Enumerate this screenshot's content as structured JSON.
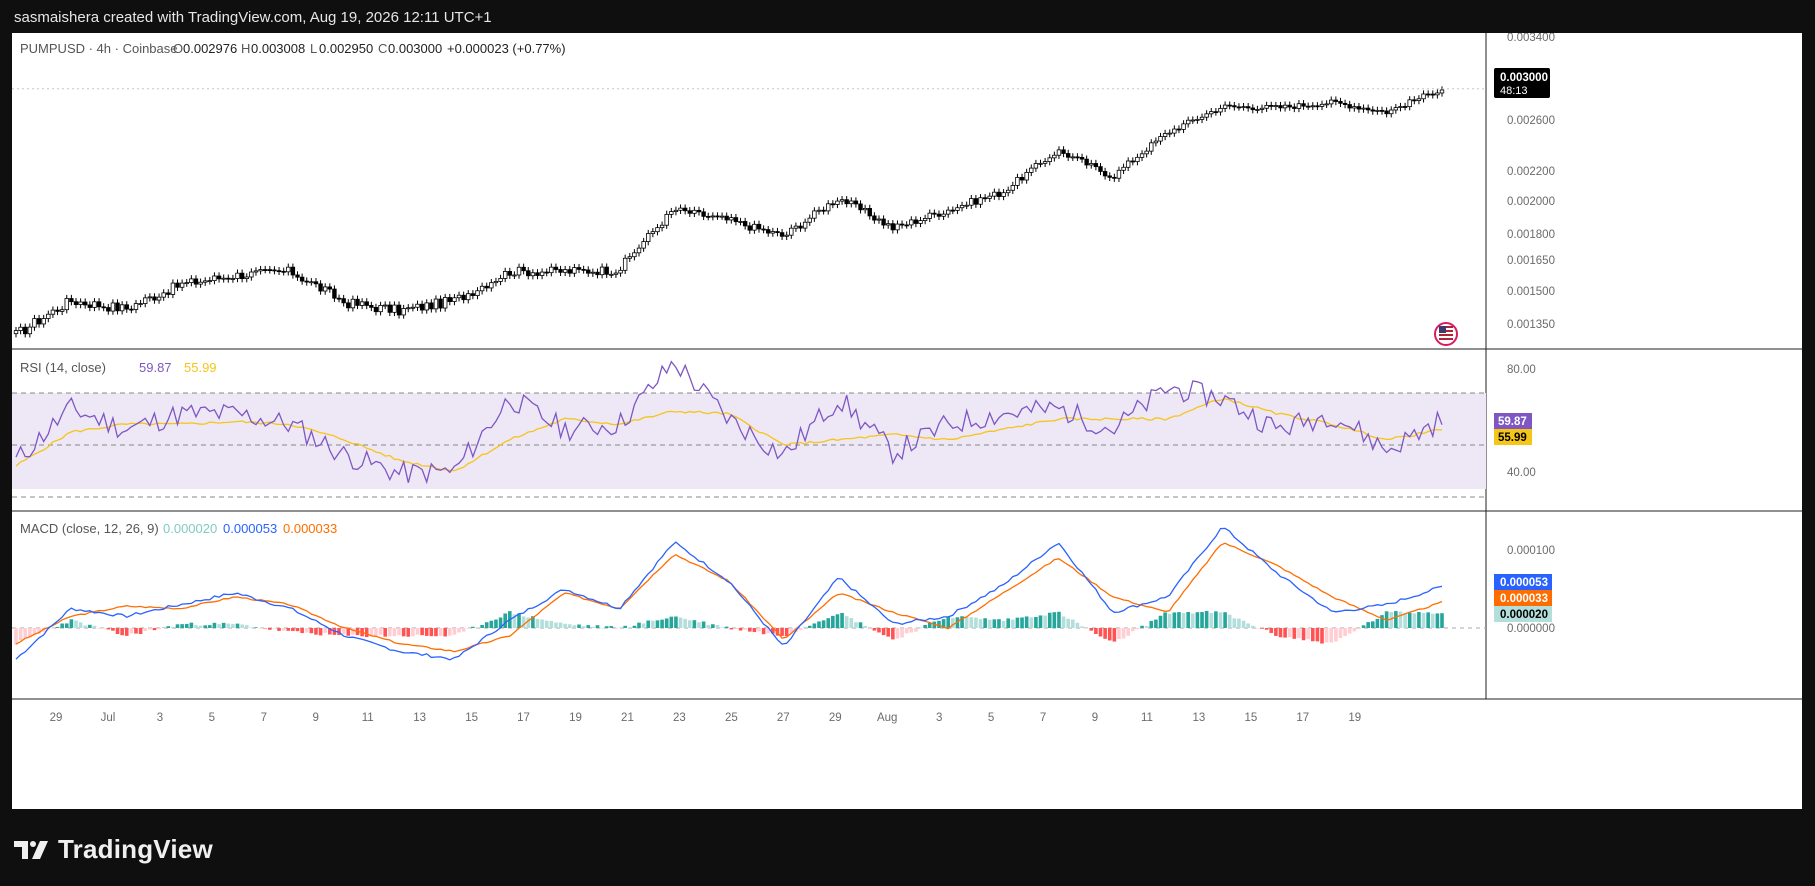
{
  "header": {
    "credit": "sasmaishera created with TradingView.com, Aug 19, 2026 12:11 UTC+1"
  },
  "footer": {
    "brand": "TradingView"
  },
  "colors": {
    "candle_up_body": "#ffffff",
    "candle_down_body": "#000000",
    "rsi_line": "#7e57c2",
    "rsi_ma": "#f5c518",
    "rsi_band": "#ede7f6",
    "macd_line": "#2962ff",
    "signal_line": "#ff6d00",
    "hist_pos_strong": "#26a69a",
    "hist_pos_weak": "#b2dfdb",
    "hist_neg_strong": "#ff5252",
    "hist_neg_weak": "#ffcdd2"
  },
  "price_panel": {
    "symbol": "PUMPUSD · 4h · Coinbase",
    "o_label": "O",
    "o_value": "0.002976",
    "h_label": "H",
    "h_value": "0.003008",
    "l_label": "L",
    "l_value": "0.002950",
    "c_label": "C",
    "c_value": "0.003000",
    "change": "+0.000023 (+0.77%)",
    "last_price": "0.003000",
    "countdown": "48:13",
    "y_ticks": [
      "0.003400",
      "0.002600",
      "0.002200",
      "0.002000",
      "0.001800",
      "0.001650",
      "0.001500",
      "0.001350"
    ],
    "flag_icon": "us-flag-icon"
  },
  "rsi_panel": {
    "title": "RSI (14, close)",
    "rsi_value": "59.87",
    "ma_value": "55.99",
    "y_ticks": [
      "80.00",
      "40.00"
    ],
    "upper_band": 70,
    "middle_band": 50,
    "lower_band": 30
  },
  "macd_panel": {
    "title": "MACD (close, 12, 26, 9)",
    "hist_value": "0.000020",
    "macd_value": "0.000053",
    "signal_value": "0.000033",
    "y_ticks": [
      "0.000100",
      "0.000000"
    ]
  },
  "x_axis": {
    "ticks": [
      "29",
      "Jul",
      "3",
      "5",
      "7",
      "9",
      "11",
      "13",
      "15",
      "17",
      "19",
      "21",
      "23",
      "25",
      "27",
      "29",
      "Aug",
      "3",
      "5",
      "7",
      "9",
      "11",
      "13",
      "15",
      "17",
      "19"
    ]
  },
  "chart_data": [
    {
      "type": "candlestick",
      "title": "PUMPUSD · 4h · Coinbase",
      "x": [
        "Jun 28",
        "Jun 29",
        "Jul 1",
        "Jul 3",
        "Jul 5",
        "Jul 7",
        "Jul 9",
        "Jul 11",
        "Jul 13",
        "Jul 15",
        "Jul 17",
        "Jul 19",
        "Jul 21",
        "Jul 23",
        "Jul 25",
        "Jul 27",
        "Jul 29",
        "Aug 1",
        "Aug 3",
        "Aug 5",
        "Aug 7",
        "Aug 9",
        "Aug 11",
        "Aug 13",
        "Aug 15",
        "Aug 17",
        "Aug 19"
      ],
      "close": [
        0.00134,
        0.0015,
        0.00146,
        0.00158,
        0.00163,
        0.00165,
        0.00149,
        0.00145,
        0.0015,
        0.00165,
        0.00165,
        0.00166,
        0.00202,
        0.00195,
        0.00185,
        0.0021,
        0.0019,
        0.00202,
        0.00214,
        0.00245,
        0.00225,
        0.0026,
        0.00283,
        0.00282,
        0.00287,
        0.00278,
        0.003
      ],
      "ylim": [
        0.00128,
        0.0036
      ],
      "y_scale": "log",
      "grid": false
    },
    {
      "type": "line",
      "title": "RSI (14, close)",
      "series": [
        {
          "name": "RSI",
          "values": [
            44,
            64,
            56,
            62,
            62,
            58,
            46,
            39,
            40,
            68,
            56,
            58,
            82,
            60,
            46,
            68,
            47,
            58,
            62,
            64,
            56,
            72,
            68,
            56,
            62,
            48,
            59.87
          ]
        },
        {
          "name": "MA",
          "values": [
            42,
            55,
            58,
            58,
            59,
            58,
            52,
            44,
            40,
            52,
            60,
            58,
            63,
            62,
            50,
            52,
            54,
            52,
            56,
            60,
            60,
            60,
            68,
            62,
            58,
            52,
            55.99
          ]
        }
      ],
      "ylim": [
        20,
        95
      ]
    },
    {
      "type": "line",
      "title": "MACD (close, 12, 26, 9)",
      "series": [
        {
          "name": "MACD",
          "values": [
            -4e-05,
            2.5e-05,
            1.5e-05,
            3e-05,
            4.5e-05,
            2.5e-05,
            -1e-05,
            -3e-05,
            -4e-05,
            1e-05,
            5e-05,
            2.5e-05,
            0.00011,
            6e-05,
            -2.5e-05,
            6.5e-05,
            5e-06,
            1.5e-05,
            5.5e-05,
            0.00011,
            2e-05,
            4e-05,
            0.00013,
            7e-05,
            2e-05,
            3e-05,
            5.3e-05
          ]
        },
        {
          "name": "Signal",
          "values": [
            -2e-05,
            1.5e-05,
            2.8e-05,
            2.5e-05,
            4e-05,
            3e-05,
            0.0,
            -2e-05,
            -3e-05,
            -1e-05,
            4.5e-05,
            2.5e-05,
            9.5e-05,
            6e-05,
            -1.5e-05,
            4.5e-05,
            2e-05,
            0.0,
            4.5e-05,
            9e-05,
            4e-05,
            2e-05,
            0.00011,
            8e-05,
            4e-05,
            1e-05,
            3.3e-05
          ]
        },
        {
          "name": "Histogram",
          "values": [
            -2e-05,
            1e-05,
            -1e-05,
            5e-06,
            5e-06,
            -5e-06,
            -1e-05,
            -1e-05,
            -1e-05,
            2e-05,
            5e-06,
            0.0,
            1.5e-05,
            0.0,
            -1e-05,
            2e-05,
            -1.5e-05,
            1.5e-05,
            1e-05,
            2e-05,
            -2e-05,
            2e-05,
            2e-05,
            -1e-05,
            -2e-05,
            2e-05,
            2e-05
          ]
        }
      ],
      "ylim": [
        -6e-05,
        0.00012
      ]
    }
  ]
}
